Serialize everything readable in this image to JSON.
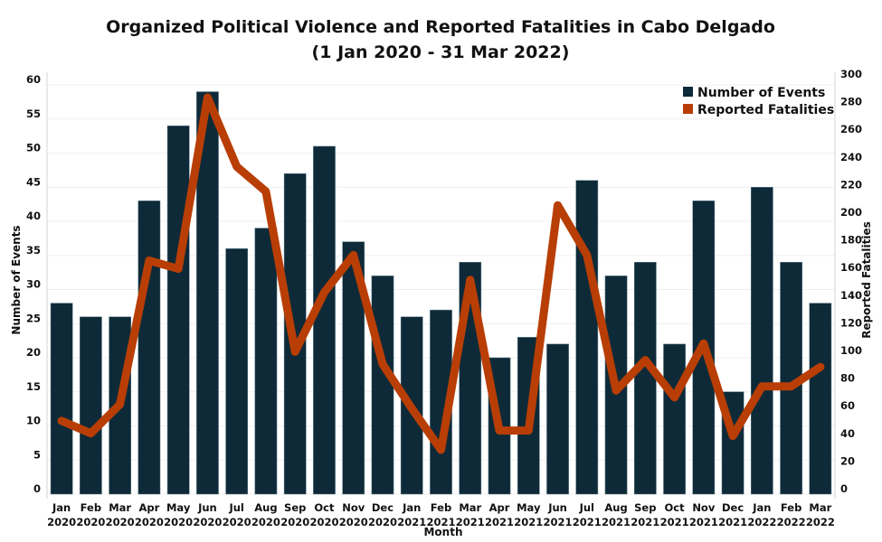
{
  "chart_data": {
    "type": "bar",
    "title": "Organized Political Violence and Reported Fatalities in Cabo Delgado",
    "subtitle": "(1 Jan 2020 - 31 Mar 2022)",
    "xlabel": "Month",
    "ylabel": "Number of Events",
    "y2label": "Reported Fatalities",
    "categories": [
      [
        "Jan",
        "2020"
      ],
      [
        "Feb",
        "2020"
      ],
      [
        "Mar",
        "2020"
      ],
      [
        "Apr",
        "2020"
      ],
      [
        "May",
        "2020"
      ],
      [
        "Jun",
        "2020"
      ],
      [
        "Jul",
        "2020"
      ],
      [
        "Aug",
        "2020"
      ],
      [
        "Sep",
        "2020"
      ],
      [
        "Oct",
        "2020"
      ],
      [
        "Nov",
        "2020"
      ],
      [
        "Dec",
        "2020"
      ],
      [
        "Jan",
        "2021"
      ],
      [
        "Feb",
        "2021"
      ],
      [
        "Mar",
        "2021"
      ],
      [
        "Apr",
        "2021"
      ],
      [
        "May",
        "2021"
      ],
      [
        "Jun",
        "2021"
      ],
      [
        "Jul",
        "2021"
      ],
      [
        "Aug",
        "2021"
      ],
      [
        "Sep",
        "2021"
      ],
      [
        "Oct",
        "2021"
      ],
      [
        "Nov",
        "2021"
      ],
      [
        "Dec",
        "2021"
      ],
      [
        "Jan",
        "2022"
      ],
      [
        "Feb",
        "2022"
      ],
      [
        "Mar",
        "2022"
      ]
    ],
    "series": [
      {
        "name": "Number of Events",
        "type": "bar",
        "axis": "left",
        "color": "#0e2a38",
        "values": [
          28,
          26,
          26,
          43,
          54,
          59,
          36,
          39,
          47,
          51,
          37,
          32,
          26,
          27,
          34,
          20,
          23,
          22,
          46,
          32,
          34,
          22,
          43,
          15,
          45,
          34,
          28
        ]
      },
      {
        "name": "Reported Fatalities",
        "type": "line",
        "axis": "right",
        "color": "#b83e05",
        "values": [
          53,
          44,
          65,
          169,
          163,
          287,
          237,
          219,
          103,
          146,
          173,
          94,
          62,
          32,
          155,
          46,
          46,
          209,
          173,
          75,
          97,
          70,
          109,
          42,
          78,
          78,
          92
        ]
      }
    ],
    "ylim": [
      0,
      60
    ],
    "y2lim": [
      0,
      300
    ],
    "yticks": [
      0,
      5,
      10,
      15,
      20,
      25,
      30,
      35,
      40,
      45,
      50,
      55,
      60
    ],
    "y2ticks": [
      0,
      20,
      40,
      60,
      80,
      100,
      120,
      140,
      160,
      180,
      200,
      220,
      240,
      260,
      280,
      300
    ],
    "grid": true,
    "legend": {
      "position": "top-right",
      "entries": [
        "Number of Events",
        "Reported Fatalities"
      ]
    }
  }
}
